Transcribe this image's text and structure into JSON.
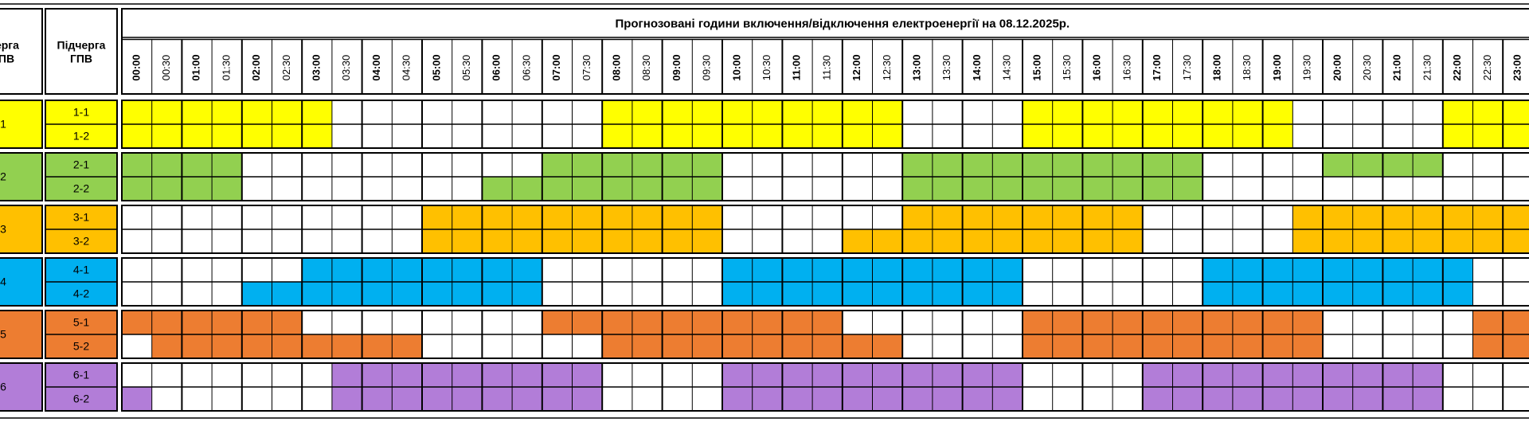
{
  "header": {
    "queue": [
      "Черга",
      "ГПВ"
    ],
    "subqueue": [
      "Підчерга",
      "ГПВ"
    ],
    "title": "Прогнозовані години включення/відключення електроенергії на 08.12.2025р."
  },
  "times": [
    "00:00",
    "00:30",
    "01:00",
    "01:30",
    "02:00",
    "02:30",
    "03:00",
    "03:30",
    "04:00",
    "04:30",
    "05:00",
    "05:30",
    "06:00",
    "06:30",
    "07:00",
    "07:30",
    "08:00",
    "08:30",
    "09:00",
    "09:30",
    "10:00",
    "10:30",
    "11:00",
    "11:30",
    "12:00",
    "12:30",
    "13:00",
    "13:30",
    "14:00",
    "14:30",
    "15:00",
    "15:30",
    "16:00",
    "16:30",
    "17:00",
    "17:30",
    "18:00",
    "18:30",
    "19:00",
    "19:30",
    "20:00",
    "20:30",
    "21:00",
    "21:30",
    "22:00",
    "22:30",
    "23:00"
  ],
  "groups": [
    {
      "label": "1",
      "color": "#ffff00",
      "subgroups": [
        {
          "label": "1-1",
          "slots": [
            1,
            1,
            1,
            1,
            1,
            1,
            1,
            0,
            0,
            0,
            0,
            0,
            0,
            0,
            0,
            0,
            1,
            1,
            1,
            1,
            1,
            1,
            1,
            1,
            1,
            1,
            0,
            0,
            0,
            0,
            1,
            1,
            1,
            1,
            1,
            1,
            1,
            1,
            1,
            0,
            0,
            0,
            0,
            0,
            1,
            1,
            1
          ]
        },
        {
          "label": "1-2",
          "slots": [
            1,
            1,
            1,
            1,
            1,
            1,
            1,
            0,
            0,
            0,
            0,
            0,
            0,
            0,
            0,
            0,
            1,
            1,
            1,
            1,
            1,
            1,
            1,
            1,
            1,
            1,
            0,
            0,
            0,
            0,
            1,
            1,
            1,
            1,
            1,
            1,
            1,
            1,
            1,
            0,
            0,
            0,
            0,
            0,
            1,
            1,
            1
          ]
        }
      ]
    },
    {
      "label": "2",
      "color": "#92d050",
      "subgroups": [
        {
          "label": "2-1",
          "slots": [
            1,
            1,
            1,
            1,
            0,
            0,
            0,
            0,
            0,
            0,
            0,
            0,
            0,
            0,
            1,
            1,
            1,
            1,
            1,
            1,
            0,
            0,
            0,
            0,
            0,
            0,
            1,
            1,
            1,
            1,
            1,
            1,
            1,
            1,
            1,
            1,
            0,
            0,
            0,
            0,
            1,
            1,
            1,
            1,
            0,
            0,
            0
          ]
        },
        {
          "label": "2-2",
          "slots": [
            1,
            1,
            1,
            1,
            0,
            0,
            0,
            0,
            0,
            0,
            0,
            0,
            1,
            1,
            1,
            1,
            1,
            1,
            1,
            1,
            0,
            0,
            0,
            0,
            0,
            0,
            1,
            1,
            1,
            1,
            1,
            1,
            1,
            1,
            1,
            1,
            0,
            0,
            0,
            0,
            0,
            0,
            0,
            0,
            0,
            0,
            0
          ]
        }
      ]
    },
    {
      "label": "3",
      "color": "#ffc000",
      "subgroups": [
        {
          "label": "3-1",
          "slots": [
            0,
            0,
            0,
            0,
            0,
            0,
            0,
            0,
            0,
            0,
            1,
            1,
            1,
            1,
            1,
            1,
            1,
            1,
            1,
            1,
            0,
            0,
            0,
            0,
            0,
            0,
            1,
            1,
            1,
            1,
            1,
            1,
            1,
            1,
            0,
            0,
            0,
            0,
            0,
            1,
            1,
            1,
            1,
            1,
            1,
            1,
            1
          ]
        },
        {
          "label": "3-2",
          "slots": [
            0,
            0,
            0,
            0,
            0,
            0,
            0,
            0,
            0,
            0,
            1,
            1,
            1,
            1,
            1,
            1,
            1,
            1,
            1,
            1,
            0,
            0,
            0,
            0,
            1,
            1,
            1,
            1,
            1,
            1,
            1,
            1,
            1,
            1,
            0,
            0,
            0,
            0,
            0,
            1,
            1,
            1,
            1,
            1,
            1,
            1,
            1
          ]
        }
      ]
    },
    {
      "label": "4",
      "color": "#00b0f0",
      "subgroups": [
        {
          "label": "4-1",
          "slots": [
            0,
            0,
            0,
            0,
            0,
            0,
            1,
            1,
            1,
            1,
            1,
            1,
            1,
            1,
            0,
            0,
            0,
            0,
            0,
            0,
            1,
            1,
            1,
            1,
            1,
            1,
            1,
            1,
            1,
            1,
            0,
            0,
            0,
            0,
            0,
            0,
            1,
            1,
            1,
            1,
            1,
            1,
            1,
            1,
            1,
            0,
            0
          ]
        },
        {
          "label": "4-2",
          "slots": [
            0,
            0,
            0,
            0,
            1,
            1,
            1,
            1,
            1,
            1,
            1,
            1,
            1,
            1,
            0,
            0,
            0,
            0,
            0,
            0,
            1,
            1,
            1,
            1,
            1,
            1,
            1,
            1,
            1,
            1,
            0,
            0,
            0,
            0,
            0,
            0,
            1,
            1,
            1,
            1,
            1,
            1,
            1,
            1,
            1,
            0,
            0
          ]
        }
      ]
    },
    {
      "label": "5",
      "color": "#ed7d31",
      "subgroups": [
        {
          "label": "5-1",
          "slots": [
            1,
            1,
            1,
            1,
            1,
            1,
            0,
            0,
            0,
            0,
            0,
            0,
            0,
            0,
            1,
            1,
            1,
            1,
            1,
            1,
            1,
            1,
            1,
            1,
            0,
            0,
            0,
            0,
            0,
            0,
            1,
            1,
            1,
            1,
            1,
            1,
            1,
            1,
            1,
            1,
            0,
            0,
            0,
            0,
            0,
            1,
            1
          ]
        },
        {
          "label": "5-2",
          "slots": [
            0,
            1,
            1,
            1,
            1,
            1,
            1,
            1,
            1,
            1,
            0,
            0,
            0,
            0,
            0,
            0,
            1,
            1,
            1,
            1,
            1,
            1,
            1,
            1,
            1,
            1,
            0,
            0,
            0,
            0,
            1,
            1,
            1,
            1,
            1,
            1,
            1,
            1,
            1,
            1,
            0,
            0,
            0,
            0,
            0,
            1,
            1
          ]
        }
      ]
    },
    {
      "label": "6",
      "color": "#b27dd8",
      "subgroups": [
        {
          "label": "6-1",
          "slots": [
            0,
            0,
            0,
            0,
            0,
            0,
            0,
            1,
            1,
            1,
            1,
            1,
            1,
            1,
            1,
            1,
            0,
            0,
            0,
            0,
            1,
            1,
            1,
            1,
            1,
            1,
            1,
            1,
            1,
            1,
            0,
            0,
            0,
            0,
            1,
            1,
            1,
            1,
            1,
            1,
            1,
            1,
            1,
            1,
            0,
            0,
            0
          ]
        },
        {
          "label": "6-2",
          "slots": [
            1,
            0,
            0,
            0,
            0,
            0,
            0,
            1,
            1,
            1,
            1,
            1,
            1,
            1,
            1,
            1,
            0,
            0,
            0,
            0,
            1,
            1,
            1,
            1,
            1,
            1,
            1,
            1,
            1,
            1,
            0,
            0,
            0,
            0,
            1,
            1,
            1,
            1,
            1,
            1,
            1,
            1,
            1,
            1,
            0,
            0,
            0
          ]
        }
      ]
    }
  ]
}
